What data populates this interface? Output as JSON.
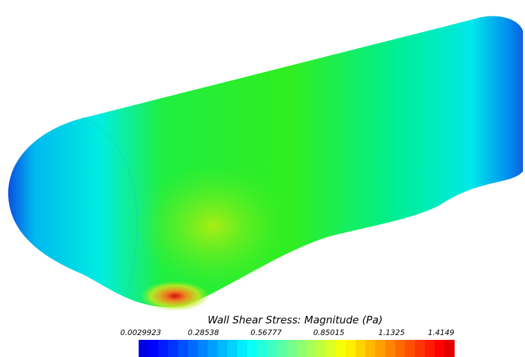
{
  "colorbar": {
    "title": "Wall Shear Stress: Magnitude (Pa)",
    "ticks": [
      "0.0029923",
      "0.28538",
      "0.56777",
      "0.85015",
      "1.1325",
      "1.4149"
    ]
  }
}
